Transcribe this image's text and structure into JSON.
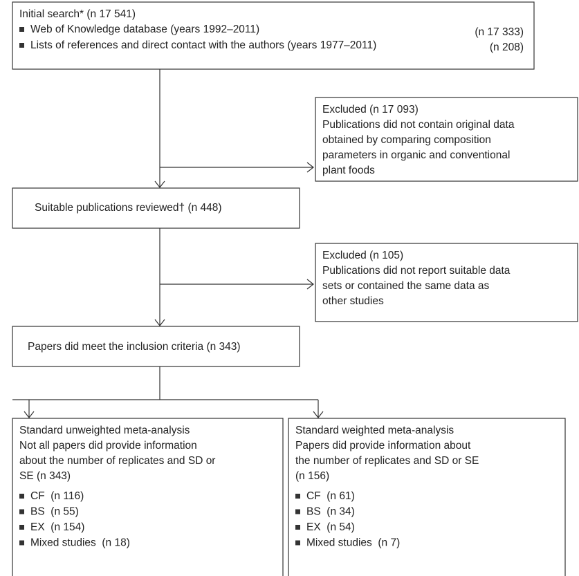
{
  "initial_search": {
    "title": "Initial search* (n 17 541)",
    "sources": [
      {
        "label": "Web of Knowledge database (years 1992–2011)",
        "count": "(n 17 333)"
      },
      {
        "label": "Lists of references and direct contact with the authors (years 1977–2011)",
        "count": "(n 208)"
      }
    ]
  },
  "excluded_1": {
    "title": "Excluded (n 17 093)",
    "reason_lines": [
      "Publications did not contain original data",
      "obtained by comparing composition",
      "parameters in organic and conventional",
      "plant foods"
    ]
  },
  "reviewed": {
    "label": "Suitable publications reviewed† (n 448)"
  },
  "excluded_2": {
    "title": "Excluded (n 105)",
    "reason_lines": [
      "Publications did not report suitable data",
      "sets or contained the same data as",
      "other studies"
    ]
  },
  "included": {
    "label": "Papers did meet the inclusion criteria (n 343)"
  },
  "analyses": [
    {
      "title_lines": [
        "Standard unweighted meta-analysis",
        "Not all papers did provide information",
        "about the number of replicates and SD or",
        "SE (n 343)"
      ],
      "groups": [
        "CF  (n 116)",
        "BS  (n 55)",
        "EX  (n 154)",
        "Mixed studies  (n 18)"
      ]
    },
    {
      "title_lines": [
        "Standard weighted meta-analysis",
        "Papers did provide information about",
        "the number of replicates and SD or SE",
        "(n 156)"
      ],
      "groups": [
        "CF  (n 61)",
        "BS  (n 34)",
        "EX  (n 54)",
        "Mixed studies  (n 7)"
      ]
    }
  ]
}
